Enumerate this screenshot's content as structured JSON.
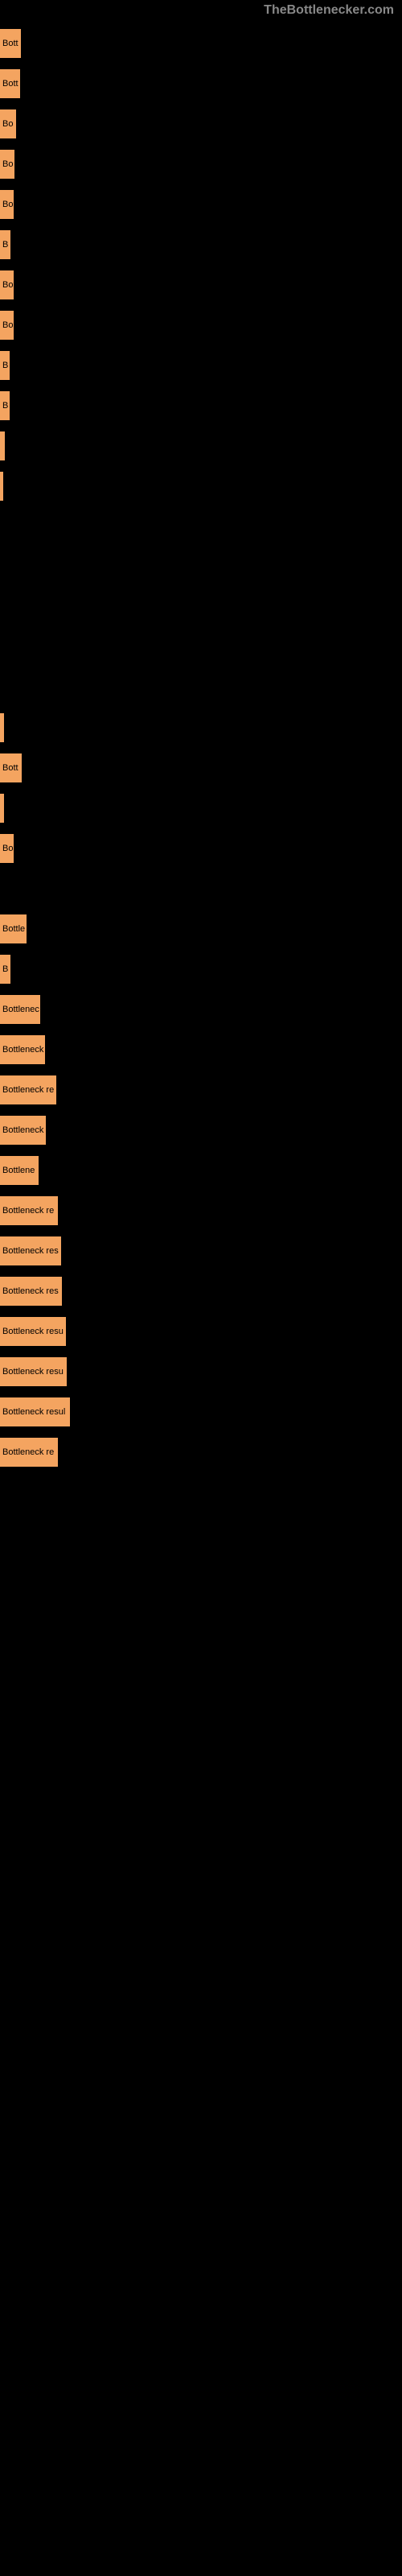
{
  "header": "TheBottlenecker.com",
  "bar_color": "#f4a460",
  "bar_text_color": "#000000",
  "background_color": "#000000",
  "header_color": "#888888",
  "label_fontsize": 11,
  "max_width": 500,
  "bars": [
    {
      "label": "Bott",
      "width": 26
    },
    {
      "label": "Bott",
      "width": 25
    },
    {
      "label": "Bo",
      "width": 20
    },
    {
      "label": "Bo",
      "width": 18
    },
    {
      "label": "Bo",
      "width": 17
    },
    {
      "label": "B",
      "width": 13
    },
    {
      "label": "Bo",
      "width": 17
    },
    {
      "label": "Bo",
      "width": 17
    },
    {
      "label": "B",
      "width": 12
    },
    {
      "label": "B",
      "width": 12
    },
    {
      "label": "",
      "width": 6
    },
    {
      "label": "",
      "width": 2
    },
    {
      "label": "",
      "width": 0
    },
    {
      "label": "",
      "width": 0
    },
    {
      "label": "",
      "width": 0
    },
    {
      "label": "",
      "width": 0
    },
    {
      "label": "",
      "width": 0
    },
    {
      "label": "",
      "width": 5
    },
    {
      "label": "Bott",
      "width": 27
    },
    {
      "label": "",
      "width": 5
    },
    {
      "label": "Bo",
      "width": 17
    },
    {
      "label": "",
      "width": 0
    },
    {
      "label": "Bottle",
      "width": 33
    },
    {
      "label": "B",
      "width": 13
    },
    {
      "label": "Bottlenec",
      "width": 50
    },
    {
      "label": "Bottleneck",
      "width": 56
    },
    {
      "label": "Bottleneck re",
      "width": 70
    },
    {
      "label": "Bottleneck",
      "width": 57
    },
    {
      "label": "Bottlene",
      "width": 48
    },
    {
      "label": "Bottleneck re",
      "width": 72
    },
    {
      "label": "Bottleneck res",
      "width": 76
    },
    {
      "label": "Bottleneck res",
      "width": 77
    },
    {
      "label": "Bottleneck resu",
      "width": 82
    },
    {
      "label": "Bottleneck resu",
      "width": 83
    },
    {
      "label": "Bottleneck resul",
      "width": 87
    },
    {
      "label": "Bottleneck re",
      "width": 72
    }
  ]
}
